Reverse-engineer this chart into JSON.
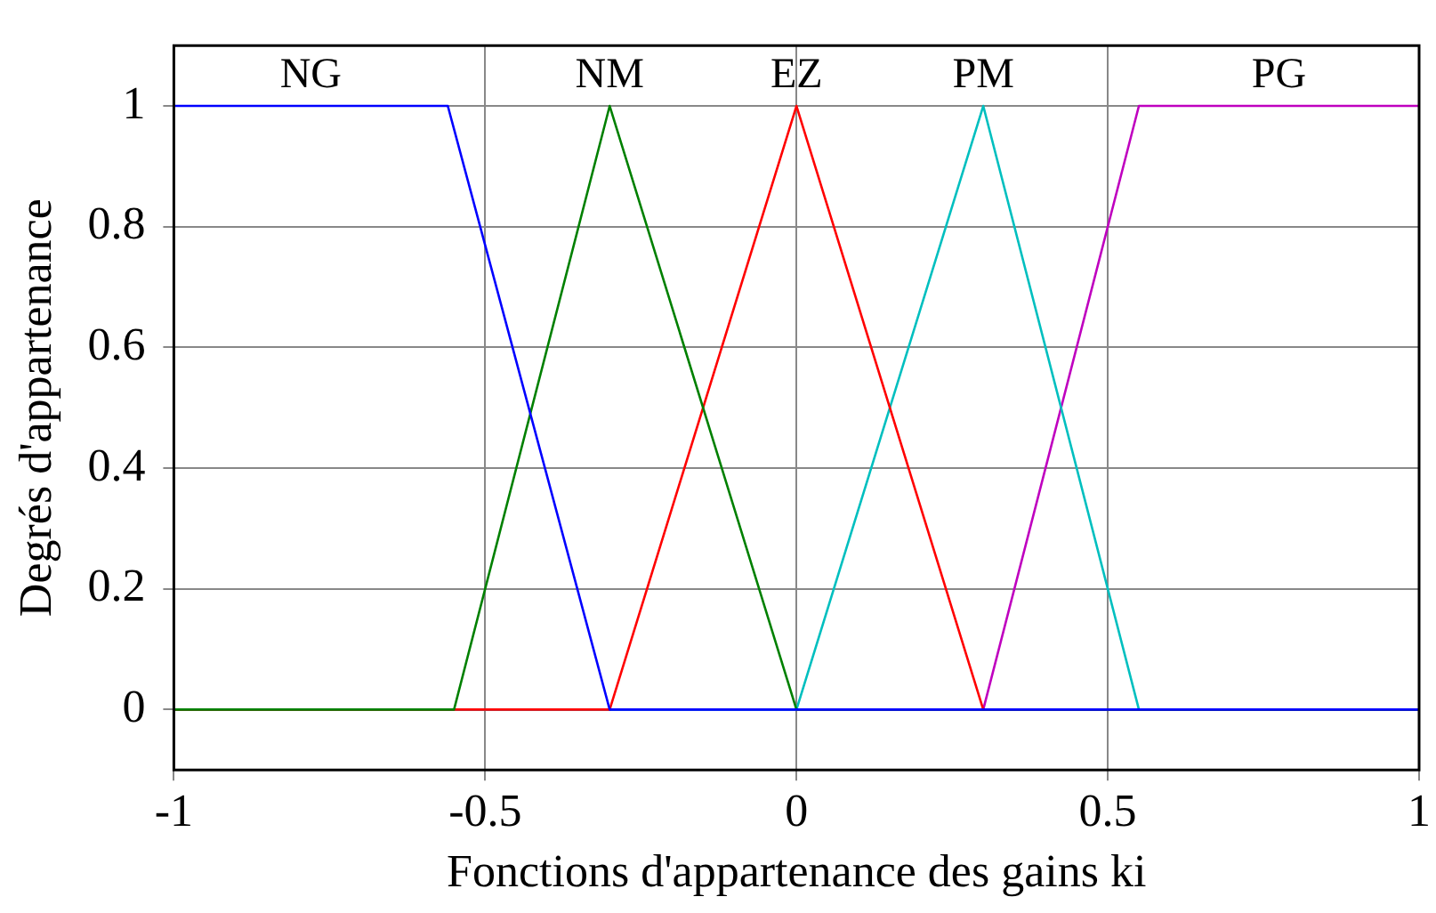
{
  "chart_data": {
    "type": "line",
    "xlabel": "Fonctions d'appartenance des gains ki",
    "ylabel": "Degrés d'appartenance",
    "xlim": [
      -1,
      1
    ],
    "xticks": [
      -1,
      -0.5,
      0,
      0.5,
      1
    ],
    "ylim": [
      -0.1,
      1.1
    ],
    "yticks": [
      0,
      0.2,
      0.4,
      0.6,
      0.8,
      1
    ],
    "grid": true,
    "legend": false,
    "marker": "none",
    "line_style": "solid",
    "series": [
      {
        "name": "NG",
        "color": "#0000ff",
        "x": [
          -1,
          -0.56,
          -0.3,
          1
        ],
        "values": [
          1,
          1,
          0,
          0
        ]
      },
      {
        "name": "NM",
        "color": "#008000",
        "x": [
          -1,
          -0.55,
          -0.3,
          0,
          1
        ],
        "values": [
          0,
          0,
          1,
          0,
          0
        ]
      },
      {
        "name": "EZ",
        "color": "#ff0000",
        "x": [
          -1,
          -0.3,
          0,
          0.3,
          1
        ],
        "values": [
          0,
          0,
          1,
          0,
          0
        ]
      },
      {
        "name": "PM",
        "color": "#00bfbf",
        "x": [
          -1,
          0,
          0.3,
          0.55,
          1
        ],
        "values": [
          0,
          0,
          1,
          0,
          0
        ]
      },
      {
        "name": "PG",
        "color": "#bf00bf",
        "x": [
          -1,
          0.3,
          0.55,
          1
        ],
        "values": [
          0,
          0,
          1,
          1
        ]
      }
    ]
  }
}
